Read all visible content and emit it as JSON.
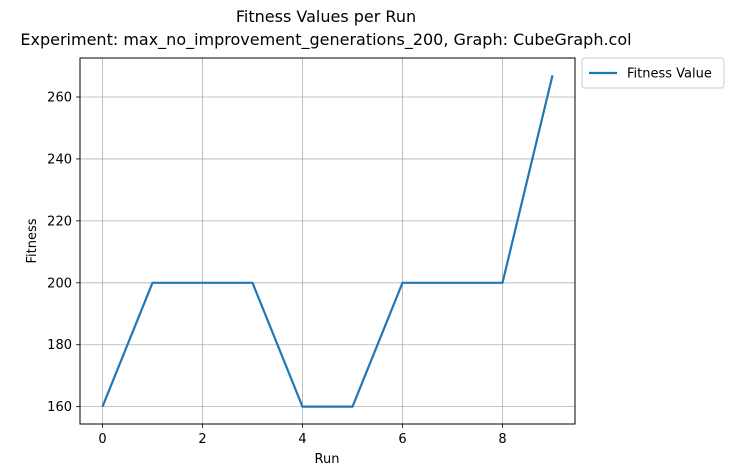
{
  "chart_data": {
    "type": "line",
    "title": "Fitness Values per Run",
    "subtitle": "Experiment: max_no_improvement_generations_200, Graph: CubeGraph.col",
    "xlabel": "Run",
    "ylabel": "Fitness",
    "x": [
      0,
      1,
      2,
      3,
      4,
      5,
      6,
      7,
      8,
      9
    ],
    "series": [
      {
        "name": "Fitness Value",
        "values": [
          160,
          200,
          200,
          200,
          160,
          160,
          200,
          200,
          200,
          267
        ],
        "color": "#1f77b4"
      }
    ],
    "xticks": [
      0,
      2,
      4,
      6,
      8
    ],
    "yticks": [
      160,
      180,
      200,
      220,
      240,
      260
    ],
    "xlim": [
      -0.45,
      9.45
    ],
    "ylim": [
      154.4,
      272.6
    ],
    "grid": true,
    "legend_position": "outside-top-right"
  }
}
